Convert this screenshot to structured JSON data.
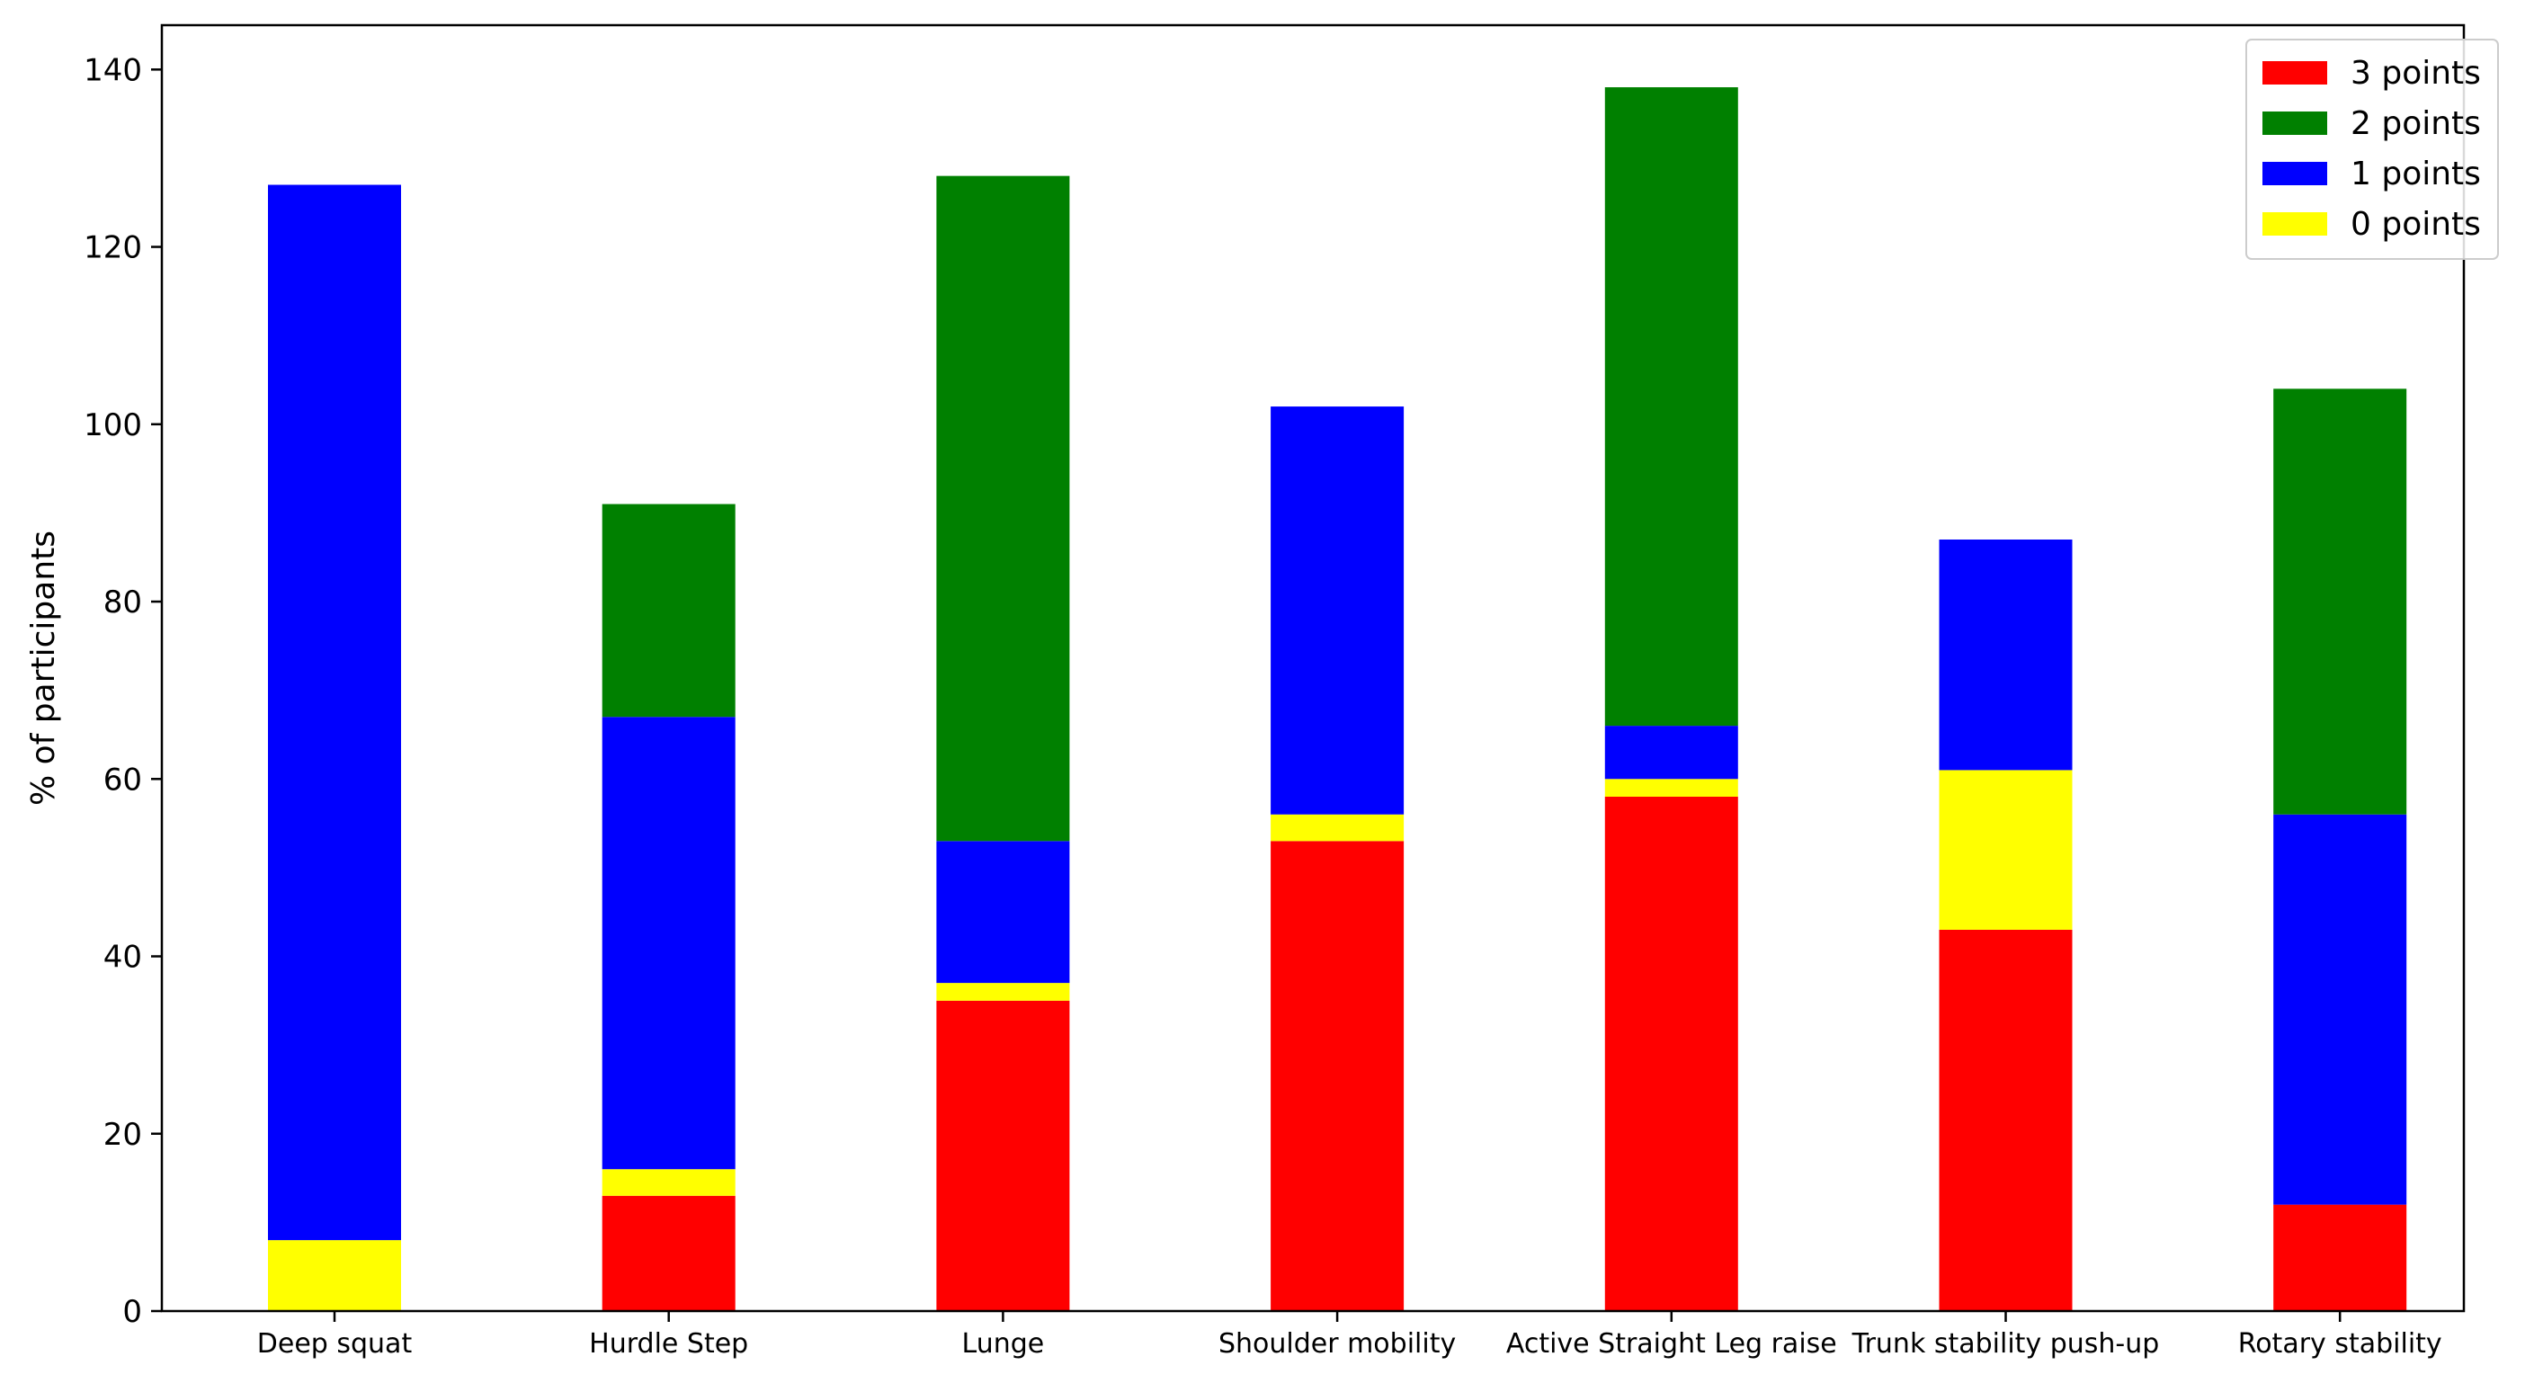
{
  "chart_data": {
    "type": "bar",
    "stacked": true,
    "title": "",
    "xlabel": "",
    "ylabel": "% of participants",
    "ylim": [
      0,
      145
    ],
    "yticks": [
      0,
      20,
      40,
      60,
      80,
      100,
      120,
      140
    ],
    "grid": false,
    "legend_position": "top-right",
    "categories": [
      "Deep squat",
      "Hurdle Step",
      "Lunge",
      "Shoulder mobility",
      "Active Straight Leg raise",
      "Trunk stability push-up",
      "Rotary stability"
    ],
    "series": [
      {
        "name": "3 points",
        "color": "#ff0000",
        "values": [
          0,
          13,
          35,
          53,
          58,
          43,
          12
        ]
      },
      {
        "name": "0 points",
        "color": "#ffff00",
        "values": [
          8,
          3,
          2,
          3,
          2,
          18,
          0
        ]
      },
      {
        "name": "1 points",
        "color": "#0000ff",
        "values": [
          119,
          51,
          16,
          46,
          6,
          26,
          44
        ]
      },
      {
        "name": "2 points",
        "color": "#008000",
        "values": [
          0,
          24,
          75,
          0,
          72,
          0,
          48
        ]
      }
    ],
    "legend_order": [
      "3 points",
      "2 points",
      "1 points",
      "0 points"
    ]
  }
}
